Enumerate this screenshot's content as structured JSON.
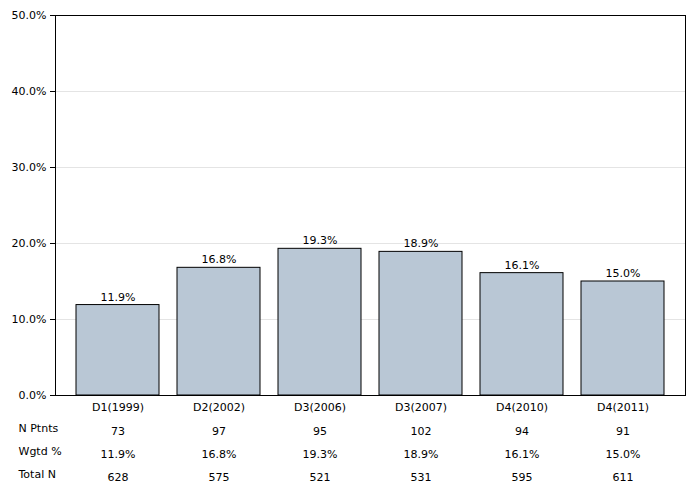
{
  "chart_data": {
    "type": "bar",
    "categories": [
      "D1(1999)",
      "D2(2002)",
      "D3(2006)",
      "D3(2007)",
      "D4(2010)",
      "D4(2011)"
    ],
    "values": [
      11.9,
      16.8,
      19.3,
      18.9,
      16.1,
      15.0
    ],
    "value_labels": [
      "11.9%",
      "16.8%",
      "19.3%",
      "18.9%",
      "16.1%",
      "15.0%"
    ],
    "data_labels": true,
    "color": "#b9c7d5",
    "ylim": [
      0,
      50
    ],
    "yticks": [
      {
        "value": 0,
        "label": "0.0%"
      },
      {
        "value": 10,
        "label": "10.0%"
      },
      {
        "value": 20,
        "label": "20.0%"
      },
      {
        "value": 30,
        "label": "30.0%"
      },
      {
        "value": 40,
        "label": "40.0%"
      },
      {
        "value": 50,
        "label": "50.0%"
      }
    ],
    "grid": true,
    "table": {
      "rows": [
        {
          "label": "N Ptnts",
          "values": [
            73,
            97,
            95,
            102,
            94,
            91
          ]
        },
        {
          "label": "Wgtd %",
          "values": [
            11.9,
            16.8,
            19.3,
            18.9,
            16.1,
            15.0
          ],
          "value_labels": [
            "11.9%",
            "16.8%",
            "19.3%",
            "18.9%",
            "16.1%",
            "15.0%"
          ]
        },
        {
          "label": "Total N",
          "values": [
            628,
            575,
            521,
            531,
            595,
            611
          ]
        }
      ]
    }
  }
}
